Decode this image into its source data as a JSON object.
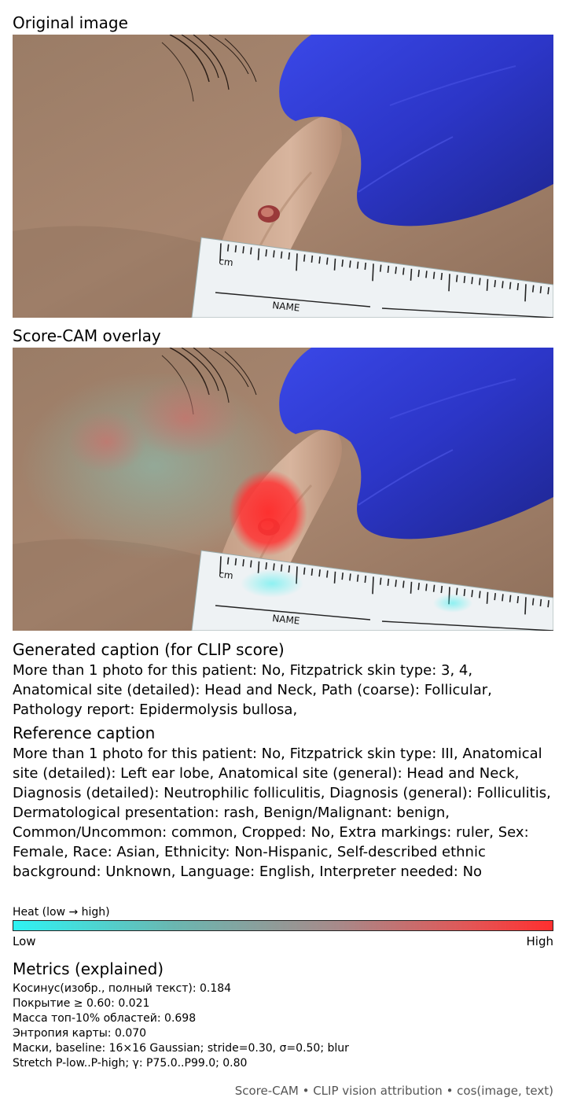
{
  "original": {
    "title": "Original image"
  },
  "overlay": {
    "title": "Score-CAM overlay"
  },
  "ruler": {
    "unit": "cm",
    "name": "NAME"
  },
  "generated": {
    "title": "Generated caption (for CLIP score)",
    "text": "More than 1 photo for this patient: No, Fitzpatrick skin type: 3, 4, Anatomical site (detailed): Head and Neck, Path (coarse): Follicular, Pathology report: Epidermolysis bullosa,"
  },
  "reference": {
    "title": "Reference caption",
    "text": "More than 1 photo for this patient: No, Fitzpatrick skin type: III, Anatomical site (detailed): Left ear lobe, Anatomical site (general): Head and Neck, Diagnosis (detailed): Neutrophilic folliculitis, Diagnosis (general): Folliculitis, Dermatological presentation: rash, Benign/Malignant: benign, Common/Uncommon: common, Cropped: No, Extra markings: ruler, Sex: Female, Race: Asian, Ethnicity: Non-Hispanic, Self-described ethnic background: Unknown, Language: English, Interpreter needed: No"
  },
  "heat": {
    "label": "Heat (low → high)",
    "low": "Low",
    "high": "High",
    "colors": [
      "#2ff3f3",
      "#ff2f2f"
    ]
  },
  "metrics": {
    "title": "Metrics (explained)",
    "lines": [
      "Косинус(изобр., полный текст): 0.184",
      "Покрытие ≥ 0.60: 0.021",
      "Масса топ-10% областей: 0.698",
      "Энтропия карты: 0.070",
      "Маски, baseline: 16×16 Gaussian; stride=0.30, σ=0.50; blur",
      "Stretch P-low..P-high; γ: P75.0..P99.0; 0.80"
    ]
  },
  "footer": "Score-CAM • CLIP vision attribution • cos(image, text)"
}
